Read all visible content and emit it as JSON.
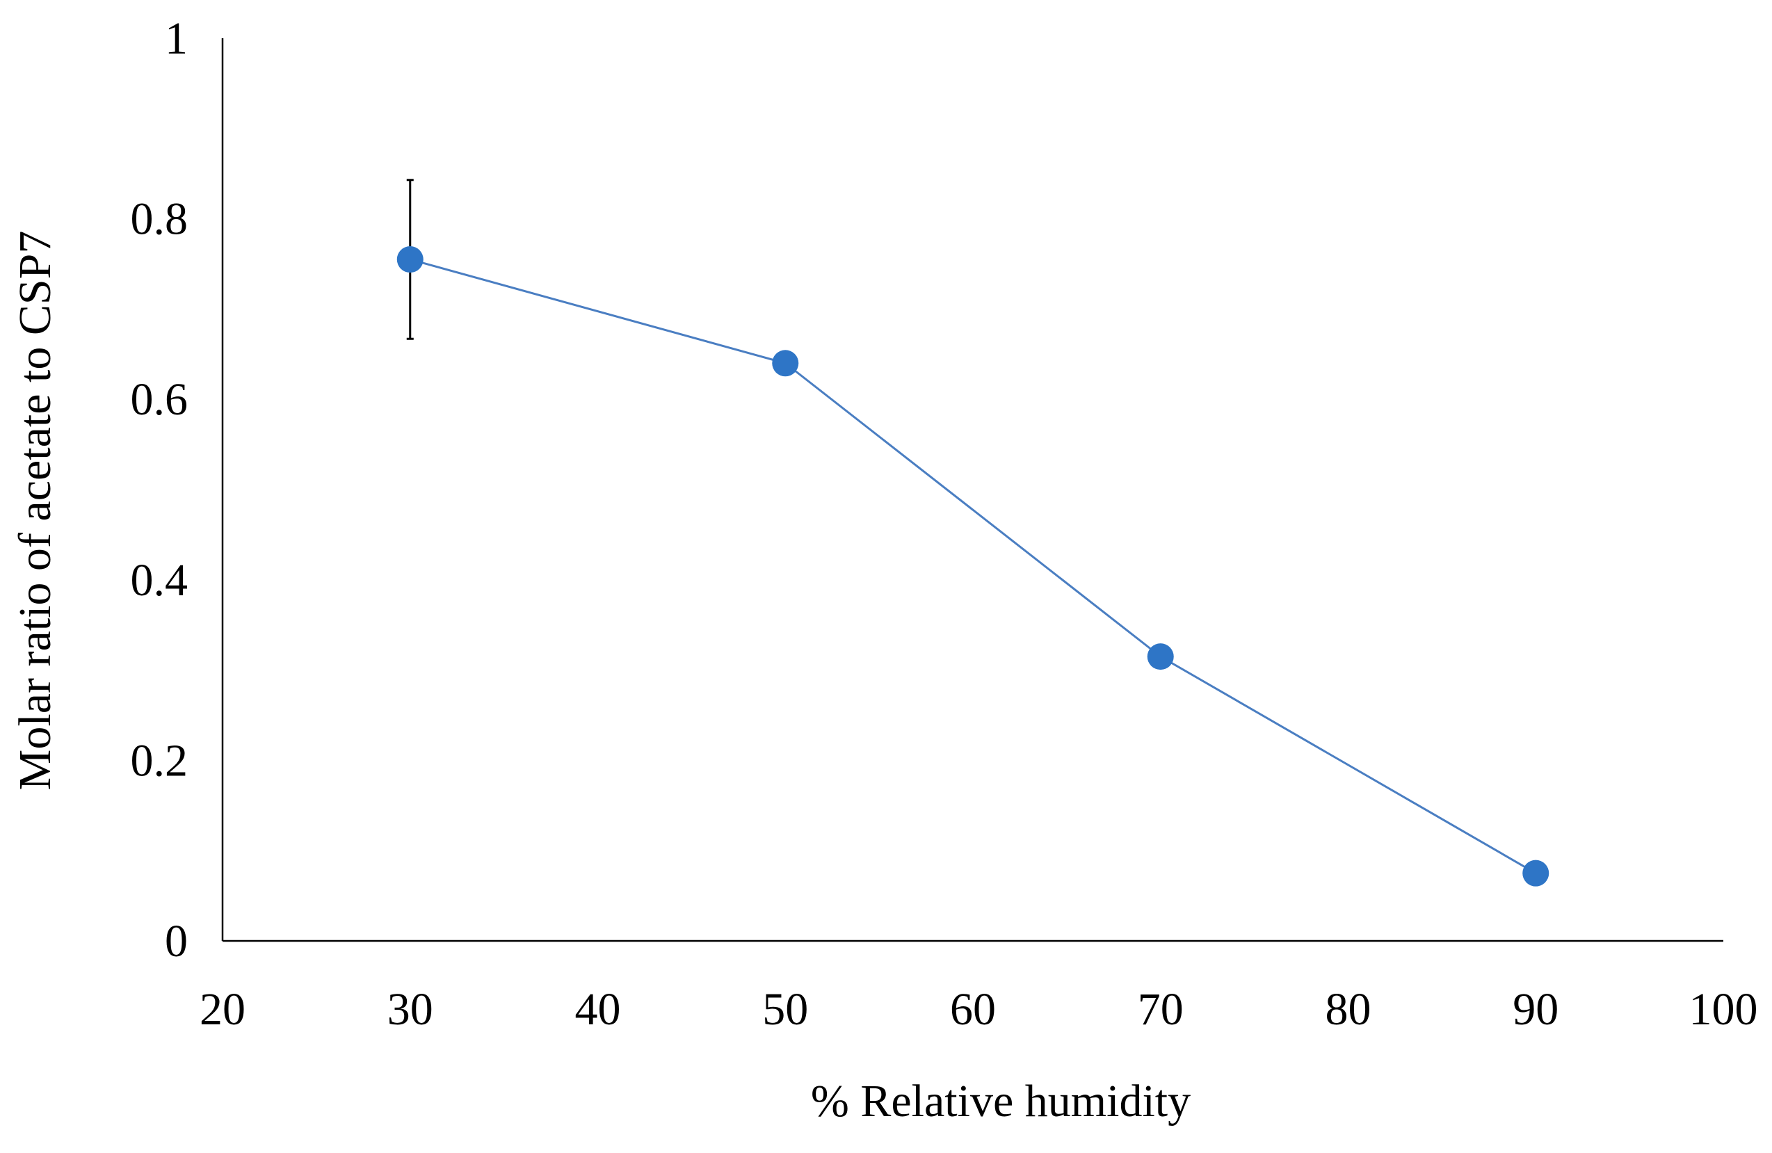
{
  "chart_data": {
    "type": "line",
    "title": "",
    "xlabel": "% Relative humidity",
    "ylabel": "Molar ratio of acetate to CSP7",
    "xlim": [
      20,
      100
    ],
    "ylim": [
      0,
      1
    ],
    "x_ticks": [
      20,
      30,
      40,
      50,
      60,
      70,
      80,
      90,
      100
    ],
    "x_tick_labels": [
      "20",
      "30",
      "40",
      "50",
      "60",
      "70",
      "80",
      "90",
      "100"
    ],
    "y_ticks": [
      0,
      0.2,
      0.4,
      0.6,
      0.8,
      1
    ],
    "y_tick_labels": [
      "0",
      "0.2",
      "0.4",
      "0.6",
      "0.8",
      "1"
    ],
    "grid": false,
    "legend": "none",
    "series": [
      {
        "name": "Molar ratio",
        "color": "#2E75C6",
        "line_color": "#4A7EC2",
        "x": [
          30,
          50,
          70,
          90
        ],
        "y": [
          0.755,
          0.64,
          0.315,
          0.075
        ],
        "error": [
          0.088,
          0,
          0,
          0
        ]
      }
    ]
  }
}
